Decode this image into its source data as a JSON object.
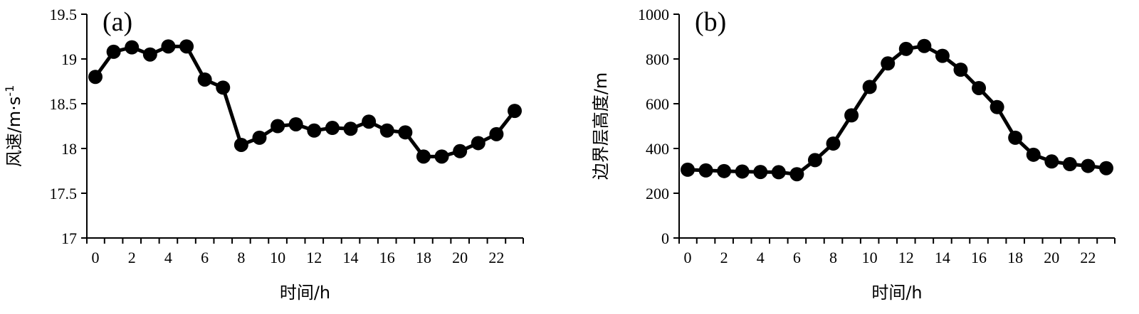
{
  "chart_data": [
    {
      "type": "line",
      "panel_label": "(a)",
      "xlabel": "时间/h",
      "ylabel": "风速/m·s",
      "ylabel_sup": "-1",
      "xlim": [
        0,
        23
      ],
      "ylim": [
        17,
        19.5
      ],
      "xticks": [
        0,
        2,
        4,
        6,
        8,
        10,
        12,
        14,
        16,
        18,
        20,
        22
      ],
      "yticks": [
        17,
        17.5,
        18,
        18.5,
        19,
        19.5
      ],
      "ytick_labels": [
        "17",
        "17.5",
        "18",
        "18.5",
        "19",
        "19.5"
      ],
      "grid": false,
      "x": [
        0,
        1,
        2,
        3,
        4,
        5,
        6,
        7,
        8,
        9,
        10,
        11,
        12,
        13,
        14,
        15,
        16,
        17,
        18,
        19,
        20,
        21,
        22,
        23
      ],
      "series": [
        {
          "values": [
            18.8,
            19.08,
            19.13,
            19.05,
            19.14,
            19.14,
            18.77,
            18.68,
            18.04,
            18.12,
            18.25,
            18.27,
            18.2,
            18.23,
            18.22,
            18.3,
            18.2,
            18.18,
            17.91,
            17.91,
            17.97,
            18.06,
            18.16,
            18.42
          ],
          "color": "#000000"
        }
      ]
    },
    {
      "type": "line",
      "panel_label": "(b)",
      "xlabel": "时间/h",
      "ylabel": "边界层高度/m",
      "xlim": [
        0,
        23
      ],
      "ylim": [
        0,
        1000
      ],
      "xticks": [
        0,
        2,
        4,
        6,
        8,
        10,
        12,
        14,
        16,
        18,
        20,
        22
      ],
      "yticks": [
        0,
        200,
        400,
        600,
        800,
        1000
      ],
      "ytick_labels": [
        "0",
        "200",
        "400",
        "600",
        "800",
        "1000"
      ],
      "grid": false,
      "x": [
        0,
        1,
        2,
        3,
        4,
        5,
        6,
        7,
        8,
        9,
        10,
        11,
        12,
        13,
        14,
        15,
        16,
        17,
        18,
        19,
        20,
        21,
        22,
        23
      ],
      "series": [
        {
          "values": [
            305,
            302,
            299,
            297,
            295,
            294,
            285,
            348,
            422,
            548,
            675,
            780,
            845,
            858,
            814,
            752,
            670,
            585,
            448,
            372,
            342,
            330,
            322,
            312
          ],
          "color": "#000000"
        }
      ]
    }
  ]
}
